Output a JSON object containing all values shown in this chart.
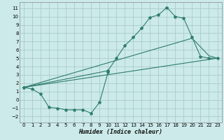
{
  "title": "",
  "xlabel": "Humidex (Indice chaleur)",
  "background_color": "#cceaea",
  "grid_color": "#aacccc",
  "line_color": "#2e7d6e",
  "xlim": [
    -0.5,
    23.5
  ],
  "ylim": [
    -2.7,
    11.7
  ],
  "xticks": [
    0,
    1,
    2,
    3,
    4,
    5,
    6,
    7,
    8,
    9,
    10,
    11,
    12,
    13,
    14,
    15,
    16,
    17,
    18,
    19,
    20,
    21,
    22,
    23
  ],
  "yticks": [
    -2,
    -1,
    0,
    1,
    2,
    3,
    4,
    5,
    6,
    7,
    8,
    9,
    10,
    11
  ],
  "series1_x": [
    0,
    1,
    2,
    3,
    4,
    5,
    6,
    7,
    8,
    9,
    10
  ],
  "series1_y": [
    1.5,
    1.3,
    0.7,
    -0.9,
    -1.0,
    -1.2,
    -1.2,
    -1.2,
    -1.6,
    -0.3,
    3.3
  ],
  "series2_x": [
    0,
    10,
    11,
    12,
    13,
    14,
    15,
    16,
    17,
    18,
    19,
    20,
    21,
    22,
    23
  ],
  "series2_y": [
    1.5,
    3.5,
    5.0,
    6.5,
    7.5,
    8.6,
    9.9,
    10.2,
    11.1,
    10.0,
    9.8,
    7.5,
    5.2,
    5.0,
    5.0
  ],
  "series3_x": [
    0,
    20,
    22,
    23
  ],
  "series3_y": [
    1.5,
    7.4,
    5.3,
    5.0
  ],
  "series4_x": [
    0,
    23
  ],
  "series4_y": [
    1.5,
    5.0
  ]
}
